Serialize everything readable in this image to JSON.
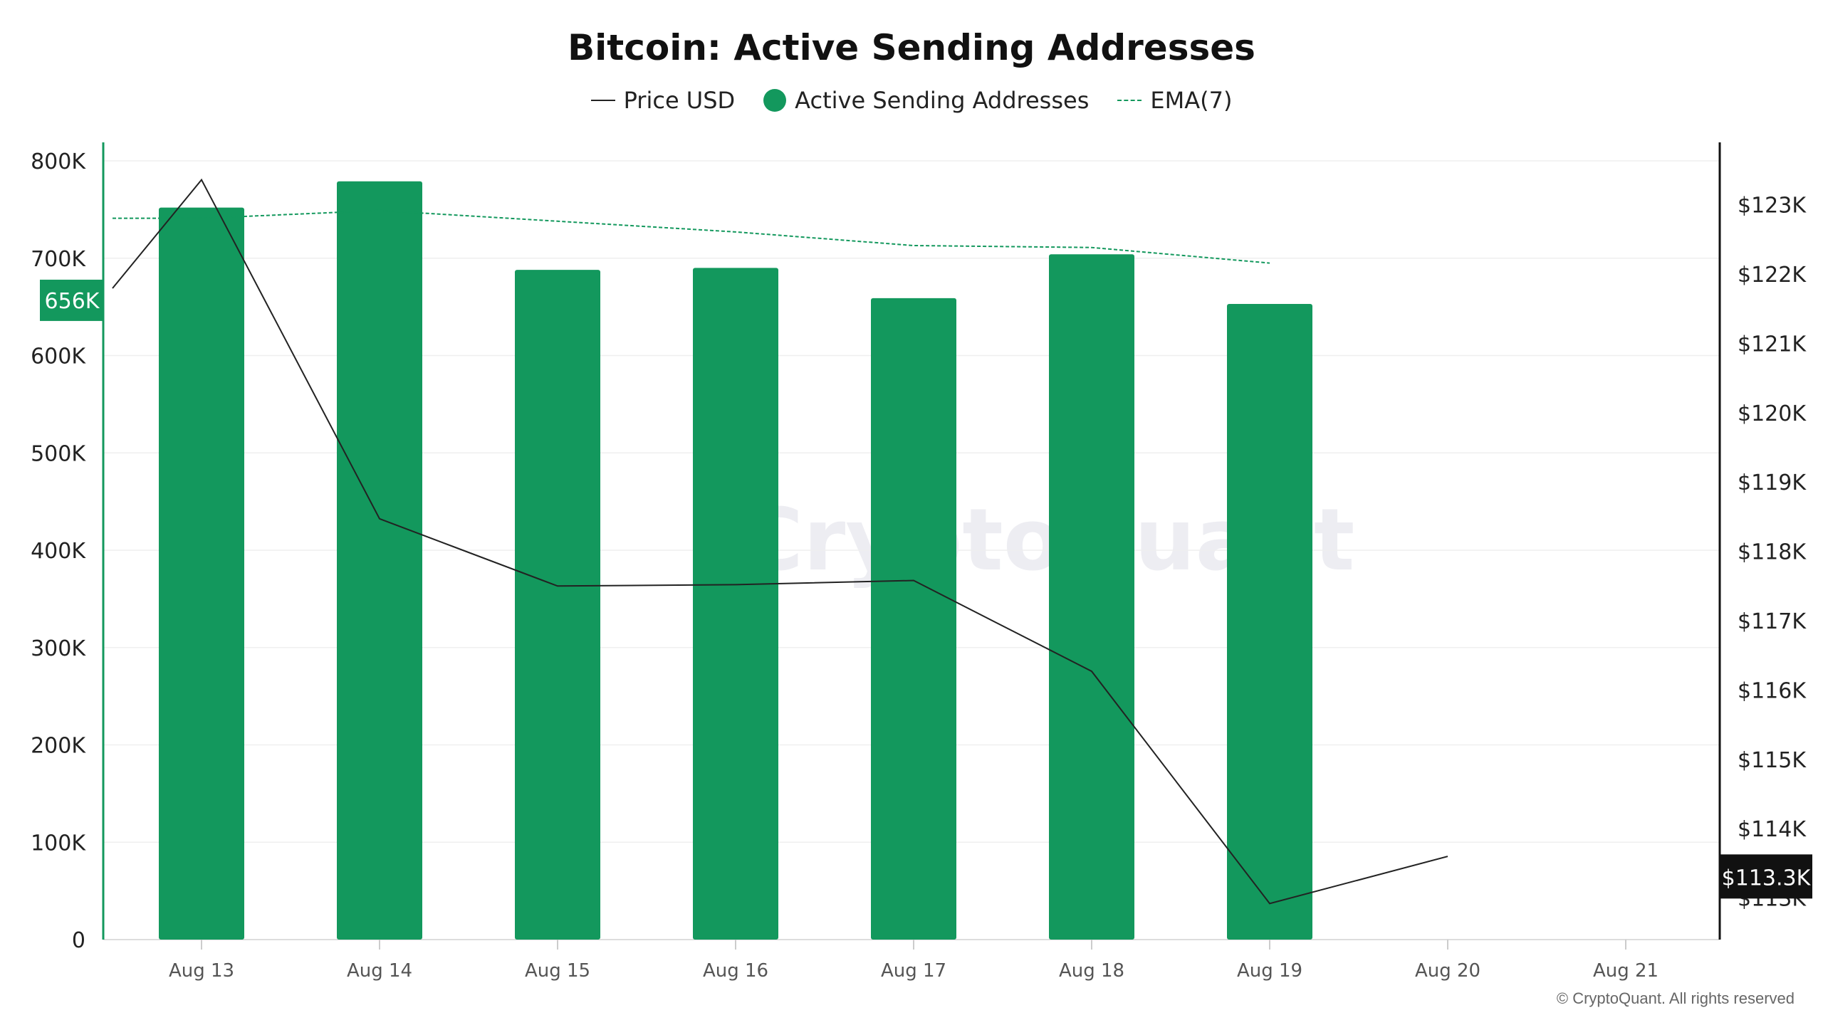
{
  "header": {
    "title": "Bitcoin: Active Sending Addresses"
  },
  "legend": {
    "price_label": "Price USD",
    "bars_label": "Active Sending Addresses",
    "ema_label": "EMA(7)"
  },
  "watermark": "CryptoQuant",
  "footer": {
    "copyright": "© CryptoQuant. All rights reserved"
  },
  "colors": {
    "bar": "#13985d",
    "price_line": "#222222",
    "ema_line": "#13985d",
    "left_axis": "#13985d",
    "right_axis": "#111111",
    "grid": "#efefef"
  },
  "chart_data": {
    "type": "bar",
    "categories": [
      "Aug 13",
      "Aug 14",
      "Aug 15",
      "Aug 16",
      "Aug 17",
      "Aug 18",
      "Aug 19",
      "Aug 20",
      "Aug 21"
    ],
    "series": [
      {
        "name": "Active Sending Addresses",
        "axis": "left",
        "type": "bar",
        "values": [
          752000,
          779000,
          688000,
          690000,
          659000,
          704000,
          653000,
          null,
          null
        ]
      },
      {
        "name": "EMA(7)",
        "axis": "left",
        "type": "line",
        "style": "dashed",
        "values": [
          741000,
          749000,
          738000,
          727000,
          713000,
          711000,
          695000,
          null,
          null
        ]
      },
      {
        "name": "Price USD",
        "axis": "right",
        "type": "line",
        "values": [
          123360,
          118470,
          117500,
          117520,
          117580,
          116270,
          112920,
          113600,
          null
        ]
      }
    ],
    "left_axis": {
      "ylim": [
        0,
        800000
      ],
      "ticks": [
        0,
        100000,
        200000,
        300000,
        400000,
        500000,
        600000,
        700000,
        800000
      ],
      "tick_labels": [
        "0",
        "100K",
        "200K",
        "300K",
        "400K",
        "500K",
        "600K",
        "700K",
        "800K"
      ],
      "current_value_label": "656K",
      "current_value": 656000
    },
    "right_axis": {
      "ylim": [
        112400,
        123900
      ],
      "ticks": [
        113000,
        114000,
        115000,
        116000,
        117000,
        118000,
        119000,
        120000,
        121000,
        122000,
        123000
      ],
      "tick_labels": [
        "$113K",
        "$114K",
        "$115K",
        "$116K",
        "$117K",
        "$118K",
        "$119K",
        "$120K",
        "$121K",
        "$122K",
        "$123K"
      ],
      "current_value_label": "$113.3K",
      "current_value": 113300
    },
    "grid": true
  }
}
